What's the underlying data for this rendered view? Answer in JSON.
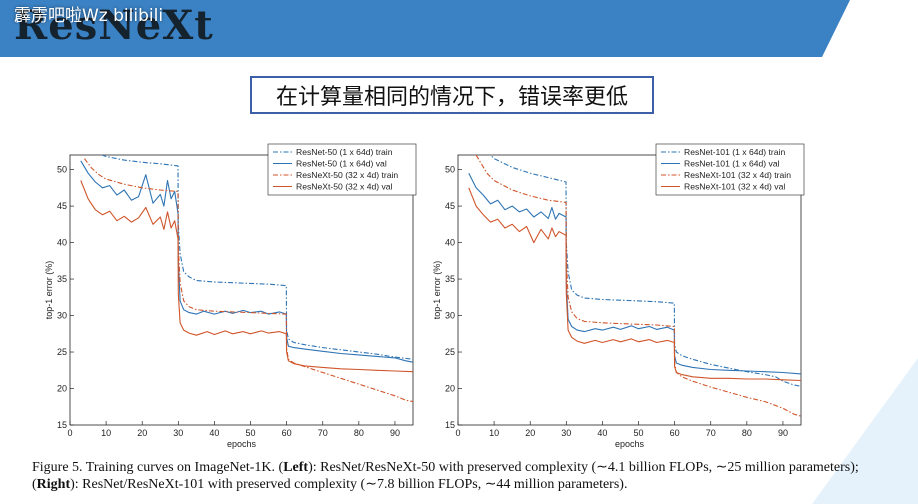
{
  "header": {
    "title": "ResNeXt",
    "watermark": "霹雳吧啦Wz bilibili"
  },
  "subtitle": "在计算量相同的情况下，错误率更低",
  "caption": {
    "prefix": "Figure 5. Training curves on ImageNet-1K. (",
    "left_bold": "Left",
    "middle": "): ResNet/ResNeXt-50 with preserved complexity (∼4.1 billion FLOPs, ∼25 million parameters); (",
    "right_bold": "Right",
    "suffix": "): ResNet/ResNeXt-101 with preserved complexity (∼7.8 billion FLOPs, ∼44 million parameters)."
  },
  "colors": {
    "banner": "#3b82c4",
    "resnet": "#2e74b5",
    "resnext": "#d0552a",
    "subtitle_border": "#3d5fa8"
  },
  "chart_data": [
    {
      "type": "line",
      "xlabel": "epochs",
      "ylabel": "top-1 error (%)",
      "xlim": [
        0,
        95
      ],
      "ylim": [
        15,
        52
      ],
      "xticks": [
        0,
        10,
        20,
        30,
        40,
        50,
        60,
        70,
        80,
        90
      ],
      "yticks": [
        15,
        20,
        25,
        30,
        35,
        40,
        45,
        50
      ],
      "legend_position": "top-right",
      "series": [
        {
          "name": "ResNet-50 (1 x 64d) train",
          "style": "dashdot",
          "color": "#2e74b5",
          "x": [
            6,
            10,
            15,
            20,
            25,
            29.9,
            30,
            30.5,
            31.5,
            33,
            35,
            40,
            45,
            50,
            55,
            59.9,
            60,
            60.5,
            62,
            65,
            70,
            75,
            80,
            85,
            90,
            95
          ],
          "y": [
            52.5,
            51.8,
            51.3,
            51.0,
            50.8,
            50.5,
            42.5,
            38.5,
            36.0,
            35.3,
            34.8,
            34.6,
            34.5,
            34.4,
            34.3,
            34.1,
            28.0,
            26.8,
            26.3,
            26.0,
            25.6,
            25.3,
            25.0,
            24.7,
            24.3,
            24.0
          ]
        },
        {
          "name": "ResNet-50 (1 x 64d) val",
          "style": "solid",
          "color": "#2e74b5",
          "x": [
            3,
            5,
            7,
            9,
            11,
            13,
            15,
            17,
            19,
            21,
            23,
            25,
            26,
            27,
            28,
            29,
            29.9,
            30,
            30.5,
            31.5,
            33,
            35,
            37,
            40,
            43,
            45,
            48,
            50,
            53,
            55,
            58,
            59.9,
            60,
            60.5,
            62,
            65,
            70,
            75,
            80,
            85,
            90,
            93,
            95
          ],
          "y": [
            51.2,
            49.5,
            48.3,
            47.5,
            47.8,
            46.5,
            47.2,
            45.8,
            46.3,
            49.3,
            45.4,
            46.6,
            45.0,
            48.5,
            46.0,
            47.0,
            44.0,
            37.5,
            32.0,
            30.8,
            30.4,
            30.2,
            30.6,
            30.2,
            30.6,
            30.3,
            30.7,
            30.4,
            30.6,
            30.2,
            30.5,
            30.2,
            27.0,
            25.8,
            25.6,
            25.4,
            25.1,
            24.8,
            24.6,
            24.4,
            24.2,
            23.8,
            23.6
          ]
        },
        {
          "name": "ResNeXt-50 (32 x 4d) train",
          "style": "dashdot",
          "color": "#d0552a",
          "x": [
            4,
            6,
            8,
            10,
            15,
            20,
            25,
            29.9,
            30,
            30.5,
            31.5,
            33,
            35,
            40,
            45,
            50,
            55,
            59.9,
            60,
            60.5,
            62,
            65,
            70,
            75,
            80,
            85,
            90,
            93,
            95
          ],
          "y": [
            51.5,
            50.2,
            49.3,
            48.7,
            48.0,
            47.5,
            47.2,
            47.0,
            39.5,
            34.5,
            32.0,
            31.2,
            30.8,
            30.6,
            30.5,
            30.4,
            30.3,
            30.2,
            25.5,
            24.0,
            23.5,
            23.0,
            22.2,
            21.4,
            20.6,
            19.8,
            19.0,
            18.4,
            18.2
          ]
        },
        {
          "name": "ResNeXt-50 (32 x 4d) val",
          "style": "solid",
          "color": "#d0552a",
          "x": [
            3,
            5,
            7,
            9,
            11,
            13,
            15,
            17,
            19,
            21,
            23,
            25,
            26,
            27,
            28,
            29,
            29.9,
            30,
            30.5,
            31.5,
            33,
            35,
            38,
            40,
            43,
            45,
            48,
            50,
            53,
            55,
            58,
            59.9,
            60,
            60.5,
            62,
            65,
            70,
            75,
            80,
            85,
            90,
            95
          ],
          "y": [
            48.5,
            46.0,
            44.5,
            43.8,
            44.3,
            43.0,
            43.6,
            42.8,
            43.4,
            44.8,
            42.5,
            43.5,
            41.8,
            44.2,
            42.0,
            43.0,
            40.5,
            33.0,
            29.0,
            28.0,
            27.6,
            27.3,
            27.8,
            27.4,
            27.9,
            27.5,
            27.8,
            27.5,
            27.9,
            27.6,
            27.8,
            27.5,
            25.0,
            23.8,
            23.4,
            23.1,
            22.9,
            22.7,
            22.6,
            22.5,
            22.4,
            22.3
          ]
        }
      ]
    },
    {
      "type": "line",
      "xlabel": "epochs",
      "ylabel": "top-1 error (%)",
      "xlim": [
        0,
        95
      ],
      "ylim": [
        15,
        52
      ],
      "xticks": [
        0,
        10,
        20,
        30,
        40,
        50,
        60,
        70,
        80,
        90
      ],
      "yticks": [
        15,
        20,
        25,
        30,
        35,
        40,
        45,
        50
      ],
      "legend_position": "top-right",
      "series": [
        {
          "name": "ResNet-101 (1 x 64d) train",
          "style": "dashdot",
          "color": "#2e74b5",
          "x": [
            8,
            10,
            15,
            20,
            25,
            29.9,
            30,
            30.5,
            31.5,
            33,
            35,
            40,
            45,
            50,
            55,
            59.9,
            60,
            60.5,
            62,
            65,
            70,
            75,
            80,
            85,
            88,
            90,
            93,
            95
          ],
          "y": [
            52.5,
            51.5,
            50.3,
            49.5,
            48.9,
            48.3,
            40.0,
            36.0,
            33.5,
            32.8,
            32.4,
            32.2,
            32.1,
            32.0,
            31.9,
            31.7,
            26.0,
            25.0,
            24.5,
            24.0,
            23.3,
            22.8,
            22.3,
            21.9,
            21.6,
            21.0,
            20.5,
            20.3
          ]
        },
        {
          "name": "ResNet-101 (1 x 64d) val",
          "style": "solid",
          "color": "#2e74b5",
          "x": [
            3,
            5,
            7,
            9,
            11,
            13,
            15,
            17,
            19,
            21,
            23,
            25,
            26,
            27,
            28,
            29.9,
            30,
            30.5,
            31.5,
            33,
            35,
            38,
            40,
            43,
            45,
            48,
            50,
            53,
            55,
            58,
            59.9,
            60,
            60.5,
            62,
            65,
            70,
            75,
            80,
            85,
            90,
            95
          ],
          "y": [
            49.5,
            47.5,
            46.5,
            45.3,
            45.8,
            44.5,
            45.0,
            44.2,
            44.6,
            43.5,
            44.2,
            43.3,
            44.8,
            43.2,
            44.0,
            43.5,
            34.5,
            29.5,
            28.5,
            28.0,
            27.8,
            28.2,
            28.0,
            28.4,
            28.1,
            28.6,
            28.2,
            28.5,
            28.1,
            28.4,
            28.0,
            24.5,
            23.5,
            23.2,
            22.9,
            22.6,
            22.5,
            22.4,
            22.3,
            22.2,
            22.0
          ]
        },
        {
          "name": "ResNeXt-101 (32 x 4d) train",
          "style": "dashdot",
          "color": "#d0552a",
          "x": [
            5,
            8,
            10,
            15,
            20,
            25,
            29.9,
            30,
            30.5,
            31.5,
            33,
            35,
            40,
            45,
            50,
            55,
            59.9,
            60,
            60.5,
            62,
            65,
            70,
            75,
            80,
            85,
            90,
            93,
            95
          ],
          "y": [
            52.0,
            49.5,
            48.5,
            47.2,
            46.4,
            45.8,
            45.5,
            38.0,
            32.5,
            30.5,
            29.6,
            29.2,
            29.0,
            28.9,
            28.8,
            28.7,
            28.5,
            23.5,
            22.2,
            21.6,
            21.0,
            20.2,
            19.5,
            18.8,
            18.2,
            17.3,
            16.5,
            16.2
          ]
        },
        {
          "name": "ResNeXt-101 (32 x 4d) val",
          "style": "solid",
          "color": "#d0552a",
          "x": [
            3,
            5,
            7,
            9,
            11,
            13,
            15,
            17,
            19,
            21,
            23,
            25,
            26,
            27,
            28,
            29.9,
            30,
            30.5,
            31.5,
            33,
            35,
            38,
            40,
            43,
            45,
            48,
            50,
            53,
            55,
            58,
            59.9,
            60,
            60.5,
            62,
            65,
            70,
            75,
            80,
            85,
            90,
            95
          ],
          "y": [
            47.5,
            45.0,
            43.8,
            42.8,
            43.2,
            42.0,
            42.5,
            41.5,
            42.2,
            40.0,
            41.8,
            40.5,
            42.0,
            40.8,
            41.5,
            41.0,
            33.0,
            28.0,
            27.0,
            26.5,
            26.2,
            26.6,
            26.3,
            26.7,
            26.4,
            26.8,
            26.4,
            26.7,
            26.3,
            26.6,
            26.3,
            23.0,
            22.2,
            21.9,
            21.6,
            21.4,
            21.4,
            21.3,
            21.3,
            21.2,
            21.1
          ]
        }
      ]
    }
  ]
}
